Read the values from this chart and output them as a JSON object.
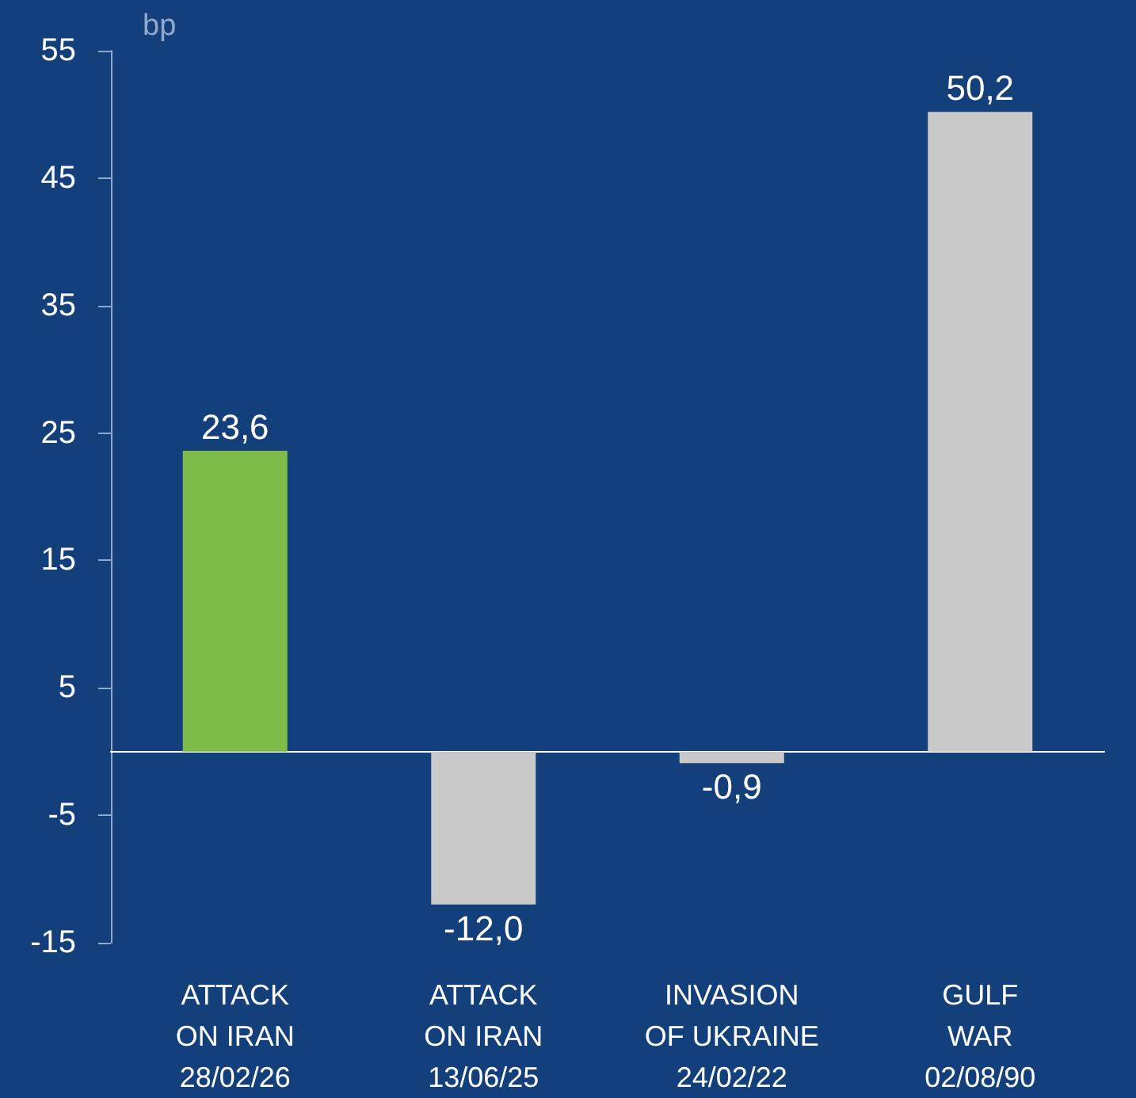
{
  "chart_data": {
    "type": "bar",
    "ylabel": "bp",
    "categories": [
      "ATTACK\nON IRAN\n28/02/26",
      "ATTACK\nON IRAN\n13/06/25",
      "INVASION\nOF UKRAINE\n24/02/22",
      "GULF\nWAR\n02/08/90"
    ],
    "values": [
      23.6,
      -12.0,
      -0.9,
      50.2
    ],
    "colors": [
      "#7cbb48",
      "#c9c9c9",
      "#c9c9c9",
      "#c9c9c9"
    ],
    "value_labels": [
      "23,6",
      "-12,0",
      "-0,9",
      "50,2"
    ],
    "ylim": [
      -15,
      55
    ],
    "yticks": [
      -15,
      -5,
      5,
      15,
      25,
      35,
      45,
      55
    ],
    "grid": false
  }
}
